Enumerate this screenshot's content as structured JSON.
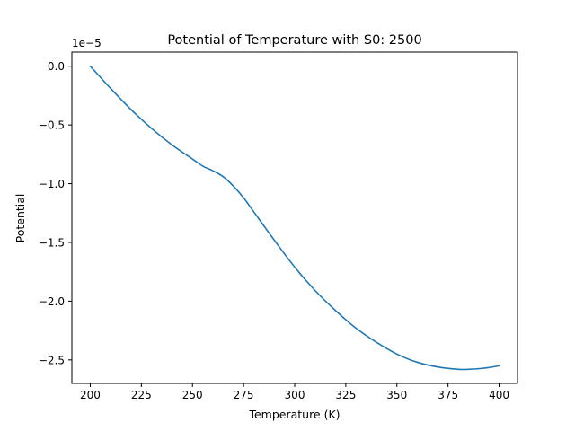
{
  "chart_data": {
    "type": "line",
    "title": "Potential of Temperature with S0: 2500",
    "xlabel": "Temperature (K)",
    "ylabel": "Potential",
    "offset_text": "1e−5",
    "y_multiplier": 1e-05,
    "xlim": [
      191,
      409
    ],
    "ylim": [
      -2.7,
      0.12
    ],
    "x_ticks": [
      200,
      225,
      250,
      275,
      300,
      325,
      350,
      375,
      400
    ],
    "x_tick_labels": [
      "200",
      "225",
      "250",
      "275",
      "300",
      "325",
      "350",
      "375",
      "400"
    ],
    "y_ticks": [
      0.0,
      -0.5,
      -1.0,
      -1.5,
      -2.0,
      -2.5
    ],
    "y_tick_labels": [
      "0.0",
      "−0.5",
      "−1.0",
      "−1.5",
      "−2.0",
      "−2.5"
    ],
    "grid": false,
    "series": [
      {
        "color": "#1f77b4",
        "x": [
          200,
          210,
          220,
          230,
          240,
          250,
          255,
          260,
          265,
          270,
          275,
          280,
          290,
          300,
          310,
          320,
          330,
          340,
          350,
          360,
          370,
          380,
          385,
          390,
          395,
          400
        ],
        "y": [
          0.0,
          -0.19,
          -0.37,
          -0.53,
          -0.67,
          -0.79,
          -0.85,
          -0.89,
          -0.94,
          -1.02,
          -1.12,
          -1.24,
          -1.48,
          -1.71,
          -1.91,
          -2.08,
          -2.23,
          -2.35,
          -2.45,
          -2.52,
          -2.56,
          -2.58,
          -2.58,
          -2.575,
          -2.565,
          -2.55
        ]
      }
    ]
  }
}
